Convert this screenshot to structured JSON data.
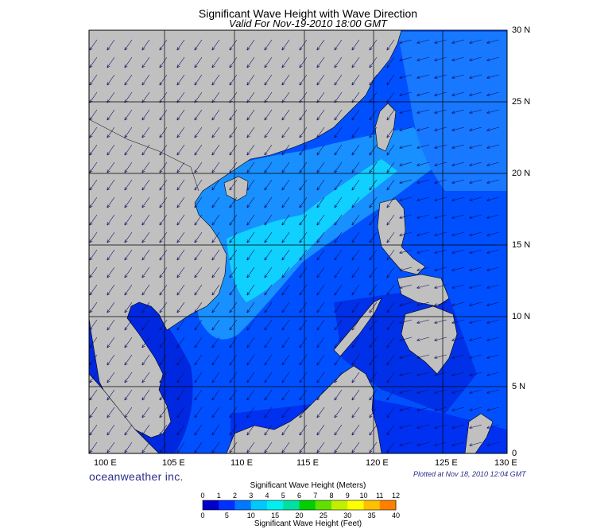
{
  "title": "Significant Wave Height with Wave Direction",
  "subtitle": "Valid For Nov-19-2010 18:00 GMT",
  "lat_labels": [
    "30 N",
    "25 N",
    "20 N",
    "15 N",
    "10 N",
    "5 N",
    "0"
  ],
  "lon_labels": [
    "100 E",
    "105 E",
    "110 E",
    "115 E",
    "120 E",
    "125 E",
    "130 E"
  ],
  "brand": "oceanweather inc.",
  "plotted": "Plotted at Nov 18, 2010 12:04 GMT",
  "legend": {
    "title_meters": "Significant Wave Height (Meters)",
    "title_feet": "Significant Wave Height (Feet)",
    "meters_ticks": [
      "0",
      "1",
      "2",
      "3",
      "4",
      "5",
      "6",
      "7",
      "8",
      "9",
      "10",
      "11",
      "12"
    ],
    "feet_ticks": [
      "0",
      "5",
      "10",
      "15",
      "20",
      "25",
      "30",
      "35",
      "40"
    ],
    "colors": [
      "#0000c8",
      "#0030ff",
      "#0078ff",
      "#00c8ff",
      "#00f0f0",
      "#00e0a0",
      "#00d000",
      "#60e000",
      "#c0f000",
      "#ffff00",
      "#ffc000",
      "#ff8000",
      "#ff3000"
    ]
  },
  "colors": {
    "land": "#c0c0c0",
    "sea_deep": "#0028e0",
    "sea_mid": "#0050ff",
    "sea_light": "#1890ff",
    "sea_bright": "#10d0ff",
    "arrow": "#101060"
  },
  "map_extent": {
    "lon": [
      98,
      130
    ],
    "lat": [
      0,
      30
    ]
  }
}
